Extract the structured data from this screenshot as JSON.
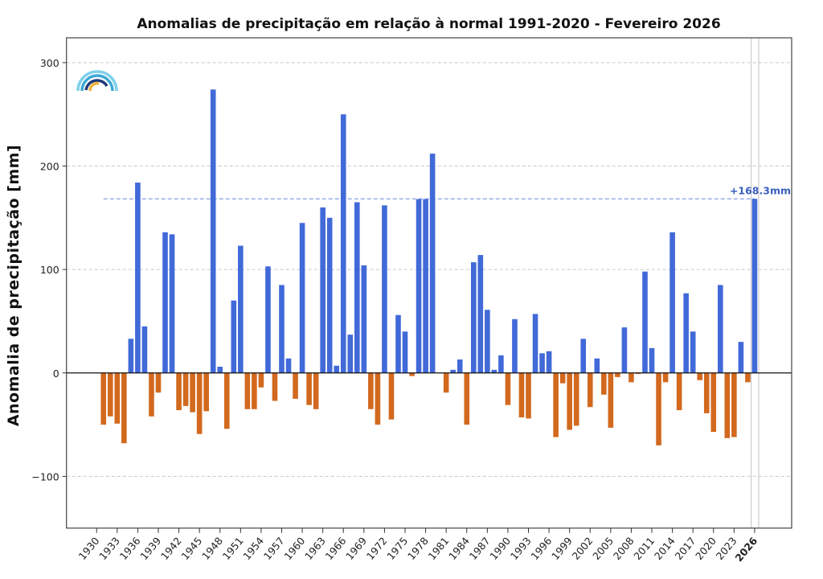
{
  "chart_data": {
    "type": "bar",
    "title": "Anomalias de precipitação em relação à normal 1991-2020 - Fevereiro 2026",
    "xlabel": "",
    "ylabel": "Anomalia de precipitação [mm]",
    "ylim": [
      -150,
      324
    ],
    "xlim": [
      1925.6,
      2031.4
    ],
    "yticks": [
      300,
      200,
      100,
      0,
      -100
    ],
    "ytick_labels": [
      "300",
      "200",
      "100",
      "0",
      "−100"
    ],
    "xticks": [
      1930,
      1933,
      1936,
      1939,
      1942,
      1945,
      1948,
      1951,
      1954,
      1957,
      1960,
      1963,
      1966,
      1969,
      1972,
      1975,
      1978,
      1981,
      1984,
      1987,
      1990,
      1993,
      1996,
      1999,
      2002,
      2005,
      2008,
      2011,
      2014,
      2017,
      2020,
      2023,
      2026
    ],
    "xtick_labels": [
      "1930",
      "1933",
      "1936",
      "1939",
      "1942",
      "1945",
      "1948",
      "1951",
      "1954",
      "1957",
      "1960",
      "1963",
      "1966",
      "1969",
      "1972",
      "1975",
      "1978",
      "1981",
      "1984",
      "1987",
      "1990",
      "1993",
      "1996",
      "1999",
      "2002",
      "2005",
      "2008",
      "2011",
      "2014",
      "2017",
      "2020",
      "2023",
      "2026"
    ],
    "highlight_year": 2026,
    "grid": "horizontal dashed",
    "colors": {
      "positive": "#4169d8",
      "negative": "#d2691e",
      "reference": "#4169d8",
      "highlight_lines": "#cccccc"
    },
    "years": [
      1930,
      1931,
      1932,
      1933,
      1934,
      1935,
      1936,
      1937,
      1938,
      1939,
      1940,
      1941,
      1942,
      1943,
      1944,
      1945,
      1946,
      1947,
      1948,
      1949,
      1950,
      1951,
      1952,
      1953,
      1954,
      1955,
      1956,
      1957,
      1958,
      1959,
      1960,
      1961,
      1962,
      1963,
      1964,
      1965,
      1966,
      1967,
      1968,
      1969,
      1970,
      1971,
      1972,
      1973,
      1974,
      1975,
      1976,
      1977,
      1978,
      1979,
      1980,
      1981,
      1982,
      1983,
      1984,
      1985,
      1986,
      1987,
      1988,
      1989,
      1990,
      1991,
      1992,
      1993,
      1994,
      1995,
      1996,
      1997,
      1998,
      1999,
      2000,
      2001,
      2002,
      2003,
      2004,
      2005,
      2006,
      2007,
      2008,
      2009,
      2010,
      2011,
      2012,
      2013,
      2014,
      2015,
      2016,
      2017,
      2018,
      2019,
      2020,
      2021,
      2022,
      2023,
      2024,
      2025,
      2026
    ],
    "values": [
      null,
      -50,
      -42,
      -49,
      -68,
      33,
      184,
      45,
      -42,
      -19,
      136,
      134,
      -36,
      -32,
      -38,
      -59,
      -37,
      274,
      6,
      -54,
      70,
      123,
      -35,
      -35,
      -14,
      103,
      -27,
      85,
      14,
      -25,
      145,
      -31,
      -35,
      160,
      150,
      7,
      250,
      37,
      165,
      104,
      -35,
      -50,
      162,
      -45,
      56,
      40,
      -3,
      168,
      168,
      212,
      0,
      -19,
      3,
      13,
      -50,
      107,
      114,
      61,
      3,
      17,
      -31,
      52,
      -43,
      -44,
      57,
      19,
      21,
      -62,
      -10,
      -55,
      -51,
      33,
      -33,
      14,
      -21,
      -53,
      -4,
      44,
      -9,
      -1,
      98,
      24,
      -70,
      -9,
      136,
      -36,
      77,
      40,
      -7,
      -39,
      -57,
      85,
      -63,
      -62,
      30,
      -9,
      168.3
    ],
    "reference_line": {
      "value": 168.3,
      "label": "+168.3mm"
    }
  }
}
